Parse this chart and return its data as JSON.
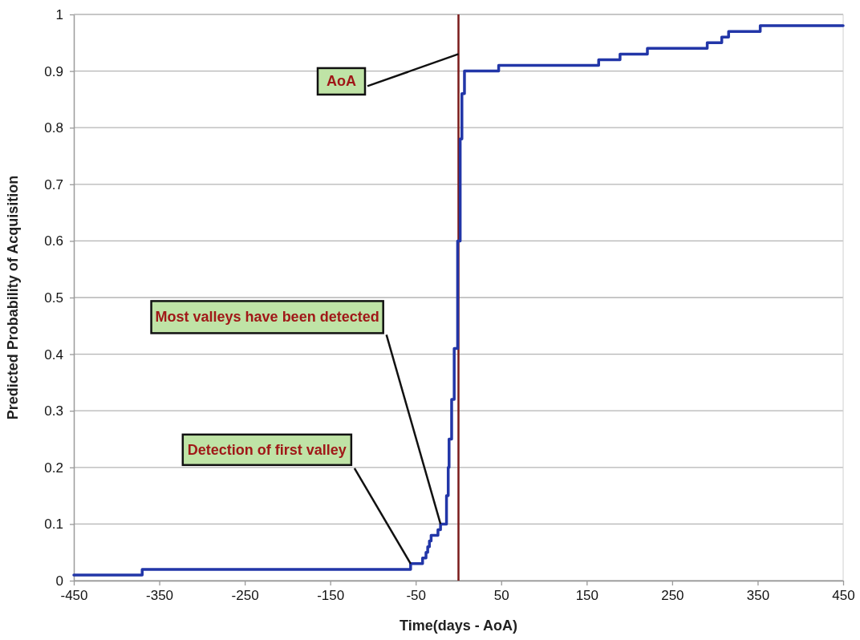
{
  "chart_data": {
    "type": "step",
    "xlabel": "Time(days - AoA)",
    "ylabel": "Predicted Probability of Acquisition",
    "x": [
      -450,
      -370,
      -56,
      -42,
      -38,
      -36,
      -34,
      -32,
      -24,
      -21,
      -14,
      -12,
      -11,
      -8,
      -5,
      -1,
      2,
      4,
      7,
      47,
      164,
      189,
      221,
      291,
      308,
      316,
      353,
      450
    ],
    "series": [
      {
        "color": "#2236a8",
        "values": [
          0.01,
          0.02,
          0.03,
          0.04,
          0.05,
          0.06,
          0.07,
          0.08,
          0.09,
          0.1,
          0.15,
          0.2,
          0.25,
          0.32,
          0.41,
          0.6,
          0.78,
          0.86,
          0.9,
          0.91,
          0.92,
          0.93,
          0.94,
          0.95,
          0.96,
          0.97,
          0.98,
          0.98
        ]
      }
    ],
    "xlim": [
      -450,
      450
    ],
    "xticks": [
      -450,
      -350,
      -250,
      -150,
      -50,
      50,
      150,
      250,
      350,
      450
    ],
    "ylim": [
      0,
      1
    ],
    "yticks": [
      0,
      0.1,
      0.2,
      0.3,
      0.4,
      0.5,
      0.6,
      0.7,
      0.8,
      0.9,
      1
    ],
    "grid": "y",
    "line_style": "solid",
    "marker": "none",
    "ref_lines": [
      {
        "axis": "x",
        "value": 0,
        "color": "#7a1a1a"
      }
    ],
    "annotations": [
      {
        "text": "AoA",
        "x": 0,
        "y": 0.93
      },
      {
        "text": "Most valleys have been detected",
        "x": -21,
        "y": 0.1
      },
      {
        "text": "Detection of first valley",
        "x": -56,
        "y": 0.03
      }
    ]
  }
}
